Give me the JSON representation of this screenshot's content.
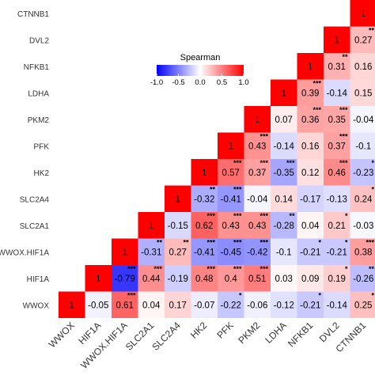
{
  "chart_data": {
    "type": "heatmap",
    "title": "",
    "xlabel": "",
    "ylabel": "",
    "variables": [
      "WWOX",
      "HIF1A",
      "WWOX.HIF1A",
      "SLC2A1",
      "SLC2A4",
      "HK2",
      "PFK",
      "PKM2",
      "LDHA",
      "NFKB1",
      "DVL2",
      "CTNNB1"
    ],
    "cells": [
      {
        "row": "WWOX",
        "col": "WWOX",
        "value": 1,
        "sig": ""
      },
      {
        "row": "WWOX",
        "col": "HIF1A",
        "value": -0.05,
        "sig": ""
      },
      {
        "row": "WWOX",
        "col": "WWOX.HIF1A",
        "value": 0.61,
        "sig": "***"
      },
      {
        "row": "WWOX",
        "col": "SLC2A1",
        "value": 0.04,
        "sig": ""
      },
      {
        "row": "WWOX",
        "col": "SLC2A4",
        "value": 0.17,
        "sig": ""
      },
      {
        "row": "WWOX",
        "col": "HK2",
        "value": -0.07,
        "sig": ""
      },
      {
        "row": "WWOX",
        "col": "PFK",
        "value": -0.22,
        "sig": "*"
      },
      {
        "row": "WWOX",
        "col": "PKM2",
        "value": -0.06,
        "sig": ""
      },
      {
        "row": "WWOX",
        "col": "LDHA",
        "value": -0.12,
        "sig": ""
      },
      {
        "row": "WWOX",
        "col": "NFKB1",
        "value": -0.21,
        "sig": "*"
      },
      {
        "row": "WWOX",
        "col": "DVL2",
        "value": -0.14,
        "sig": ""
      },
      {
        "row": "WWOX",
        "col": "CTNNB1",
        "value": 0.25,
        "sig": "*"
      },
      {
        "row": "HIF1A",
        "col": "HIF1A",
        "value": 1,
        "sig": ""
      },
      {
        "row": "HIF1A",
        "col": "WWOX.HIF1A",
        "value": -0.79,
        "sig": "***"
      },
      {
        "row": "HIF1A",
        "col": "SLC2A1",
        "value": 0.44,
        "sig": "***"
      },
      {
        "row": "HIF1A",
        "col": "SLC2A4",
        "value": -0.19,
        "sig": ""
      },
      {
        "row": "HIF1A",
        "col": "HK2",
        "value": 0.48,
        "sig": "***"
      },
      {
        "row": "HIF1A",
        "col": "PFK",
        "value": 0.4,
        "sig": "***"
      },
      {
        "row": "HIF1A",
        "col": "PKM2",
        "value": 0.51,
        "sig": "***"
      },
      {
        "row": "HIF1A",
        "col": "LDHA",
        "value": 0.03,
        "sig": ""
      },
      {
        "row": "HIF1A",
        "col": "NFKB1",
        "value": 0.09,
        "sig": ""
      },
      {
        "row": "HIF1A",
        "col": "DVL2",
        "value": 0.19,
        "sig": "*"
      },
      {
        "row": "HIF1A",
        "col": "CTNNB1",
        "value": -0.26,
        "sig": "**"
      },
      {
        "row": "WWOX.HIF1A",
        "col": "WWOX.HIF1A",
        "value": 1,
        "sig": ""
      },
      {
        "row": "WWOX.HIF1A",
        "col": "SLC2A1",
        "value": -0.31,
        "sig": "**"
      },
      {
        "row": "WWOX.HIF1A",
        "col": "SLC2A4",
        "value": 0.27,
        "sig": "**"
      },
      {
        "row": "WWOX.HIF1A",
        "col": "HK2",
        "value": -0.41,
        "sig": "***"
      },
      {
        "row": "WWOX.HIF1A",
        "col": "PFK",
        "value": -0.45,
        "sig": "***"
      },
      {
        "row": "WWOX.HIF1A",
        "col": "PKM2",
        "value": -0.42,
        "sig": "***"
      },
      {
        "row": "WWOX.HIF1A",
        "col": "LDHA",
        "value": -0.1,
        "sig": ""
      },
      {
        "row": "WWOX.HIF1A",
        "col": "NFKB1",
        "value": -0.21,
        "sig": "*"
      },
      {
        "row": "WWOX.HIF1A",
        "col": "DVL2",
        "value": -0.21,
        "sig": "*"
      },
      {
        "row": "WWOX.HIF1A",
        "col": "CTNNB1",
        "value": 0.38,
        "sig": "***"
      },
      {
        "row": "SLC2A1",
        "col": "SLC2A1",
        "value": 1,
        "sig": ""
      },
      {
        "row": "SLC2A1",
        "col": "SLC2A4",
        "value": -0.15,
        "sig": ""
      },
      {
        "row": "SLC2A1",
        "col": "HK2",
        "value": 0.62,
        "sig": "***"
      },
      {
        "row": "SLC2A1",
        "col": "PFK",
        "value": 0.43,
        "sig": "***"
      },
      {
        "row": "SLC2A1",
        "col": "PKM2",
        "value": 0.43,
        "sig": "***"
      },
      {
        "row": "SLC2A1",
        "col": "LDHA",
        "value": -0.28,
        "sig": "**"
      },
      {
        "row": "SLC2A1",
        "col": "NFKB1",
        "value": 0.04,
        "sig": ""
      },
      {
        "row": "SLC2A1",
        "col": "DVL2",
        "value": 0.21,
        "sig": "*"
      },
      {
        "row": "SLC2A1",
        "col": "CTNNB1",
        "value": -0.03,
        "sig": ""
      },
      {
        "row": "SLC2A4",
        "col": "SLC2A4",
        "value": 1,
        "sig": ""
      },
      {
        "row": "SLC2A4",
        "col": "HK2",
        "value": -0.32,
        "sig": "**"
      },
      {
        "row": "SLC2A4",
        "col": "PFK",
        "value": -0.41,
        "sig": "***"
      },
      {
        "row": "SLC2A4",
        "col": "PKM2",
        "value": -0.04,
        "sig": ""
      },
      {
        "row": "SLC2A4",
        "col": "LDHA",
        "value": 0.14,
        "sig": ""
      },
      {
        "row": "SLC2A4",
        "col": "NFKB1",
        "value": -0.17,
        "sig": ""
      },
      {
        "row": "SLC2A4",
        "col": "DVL2",
        "value": -0.13,
        "sig": ""
      },
      {
        "row": "SLC2A4",
        "col": "CTNNB1",
        "value": 0.24,
        "sig": "*"
      },
      {
        "row": "HK2",
        "col": "HK2",
        "value": 1,
        "sig": ""
      },
      {
        "row": "HK2",
        "col": "PFK",
        "value": 0.57,
        "sig": "***"
      },
      {
        "row": "HK2",
        "col": "PKM2",
        "value": 0.37,
        "sig": "***"
      },
      {
        "row": "HK2",
        "col": "LDHA",
        "value": -0.35,
        "sig": "***"
      },
      {
        "row": "HK2",
        "col": "NFKB1",
        "value": 0.12,
        "sig": ""
      },
      {
        "row": "HK2",
        "col": "DVL2",
        "value": 0.46,
        "sig": "***"
      },
      {
        "row": "HK2",
        "col": "CTNNB1",
        "value": -0.23,
        "sig": "*"
      },
      {
        "row": "PFK",
        "col": "PFK",
        "value": 1,
        "sig": ""
      },
      {
        "row": "PFK",
        "col": "PKM2",
        "value": 0.43,
        "sig": "***"
      },
      {
        "row": "PFK",
        "col": "LDHA",
        "value": -0.14,
        "sig": ""
      },
      {
        "row": "PFK",
        "col": "NFKB1",
        "value": 0.16,
        "sig": ""
      },
      {
        "row": "PFK",
        "col": "DVL2",
        "value": 0.37,
        "sig": "***"
      },
      {
        "row": "PFK",
        "col": "CTNNB1",
        "value": -0.1,
        "sig": ""
      },
      {
        "row": "PKM2",
        "col": "PKM2",
        "value": 1,
        "sig": ""
      },
      {
        "row": "PKM2",
        "col": "LDHA",
        "value": 0.07,
        "sig": ""
      },
      {
        "row": "PKM2",
        "col": "NFKB1",
        "value": 0.36,
        "sig": "***"
      },
      {
        "row": "PKM2",
        "col": "DVL2",
        "value": 0.35,
        "sig": "***"
      },
      {
        "row": "PKM2",
        "col": "CTNNB1",
        "value": -0.04,
        "sig": ""
      },
      {
        "row": "LDHA",
        "col": "LDHA",
        "value": 1,
        "sig": ""
      },
      {
        "row": "LDHA",
        "col": "NFKB1",
        "value": 0.39,
        "sig": "***"
      },
      {
        "row": "LDHA",
        "col": "DVL2",
        "value": -0.14,
        "sig": ""
      },
      {
        "row": "LDHA",
        "col": "CTNNB1",
        "value": 0.15,
        "sig": ""
      },
      {
        "row": "NFKB1",
        "col": "NFKB1",
        "value": 1,
        "sig": ""
      },
      {
        "row": "NFKB1",
        "col": "DVL2",
        "value": 0.31,
        "sig": "**"
      },
      {
        "row": "NFKB1",
        "col": "CTNNB1",
        "value": 0.16,
        "sig": ""
      },
      {
        "row": "DVL2",
        "col": "DVL2",
        "value": 1,
        "sig": ""
      },
      {
        "row": "DVL2",
        "col": "CTNNB1",
        "value": 0.27,
        "sig": "**"
      },
      {
        "row": "CTNNB1",
        "col": "CTNNB1",
        "value": 1,
        "sig": ""
      }
    ],
    "legend": {
      "title": "Spearman",
      "ticks": [
        -1.0,
        -0.5,
        0.0,
        0.5,
        1.0
      ],
      "tick_labels": [
        "-1.0",
        "-0.5",
        "0.0",
        "0.5",
        "1.0"
      ],
      "range": [
        -1,
        1
      ],
      "colors": {
        "low": "#0000ff",
        "mid": "#ffffff",
        "high": "#ff0000"
      }
    }
  }
}
